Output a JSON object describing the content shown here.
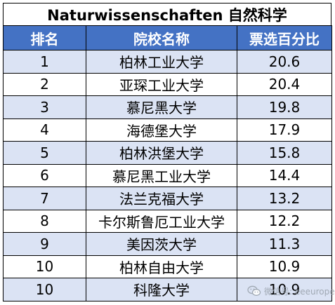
{
  "title": "Naturwissenschaften 自然科学",
  "headers": [
    "排名",
    "院校名称",
    "票选百分比"
  ],
  "rows": [
    {
      "rank": "1",
      "name": "柏林工业大学",
      "percent": "20.6"
    },
    {
      "rank": "2",
      "name": "亚琛工业大学",
      "percent": "20.4"
    },
    {
      "rank": "3",
      "name": "慕尼黑大学",
      "percent": "19.8"
    },
    {
      "rank": "4",
      "name": "海德堡大学",
      "percent": "17.9"
    },
    {
      "rank": "5",
      "name": "柏林洪堡大学",
      "percent": "15.8"
    },
    {
      "rank": "6",
      "name": "慕尼黑工业大学",
      "percent": "14.4"
    },
    {
      "rank": "7",
      "name": "法兰克福大学",
      "percent": "13.2"
    },
    {
      "rank": "8",
      "name": "卡尔斯鲁厄工业大学",
      "percent": "12.2"
    },
    {
      "rank": "9",
      "name": "美因茨大学",
      "percent": "11.3"
    },
    {
      "rank": "10",
      "name": "柏林自由大学",
      "percent": "10.9"
    },
    {
      "rank": "10",
      "name": "科隆大学",
      "percent": "10.9"
    }
  ],
  "watermark": {
    "text": "微信号: eeeurope",
    "icon": "wechat-icon"
  },
  "colors": {
    "header_bg": "#4472c4",
    "stripe": "#dbe3f4"
  }
}
